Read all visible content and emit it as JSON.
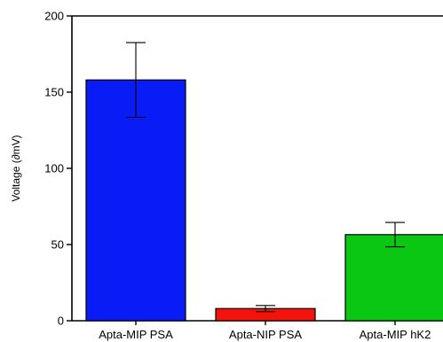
{
  "chart_data": {
    "type": "bar",
    "title": "",
    "xlabel": "",
    "ylabel": "Voltage (∂mV)",
    "ylim": [
      0,
      200
    ],
    "yticks": [
      0,
      50,
      100,
      150,
      200
    ],
    "grid": false,
    "legend": "none",
    "categories": [
      "Apta-MIP PSA",
      "Apta-NIP PSA",
      "Apta-MIP hK2"
    ],
    "values": [
      158,
      8,
      56.5
    ],
    "error_low": [
      133.5,
      6,
      48.5
    ],
    "error_high": [
      182.5,
      10,
      64.5
    ],
    "colors": [
      "#0a1cf5",
      "#f5120a",
      "#0ac812"
    ]
  }
}
